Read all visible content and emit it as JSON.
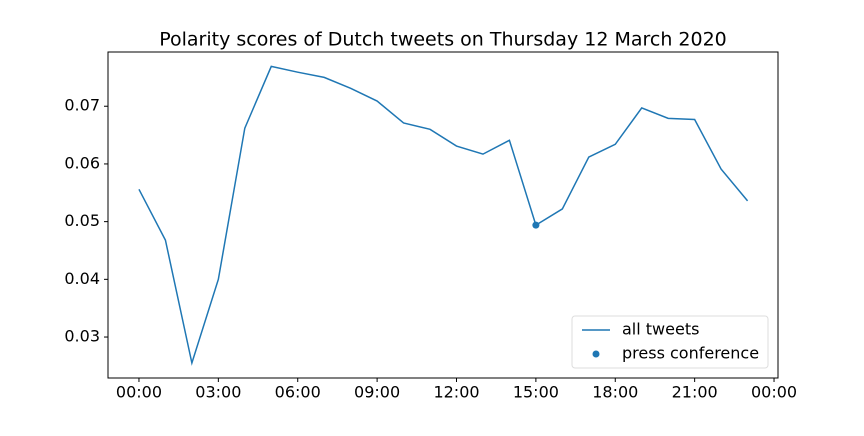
{
  "chart_data": {
    "type": "line",
    "title": "Polarity scores of Dutch tweets on Thursday 12 March 2020",
    "series": [
      {
        "name": "all tweets",
        "type": "line",
        "color": "#1f77b4",
        "x": [
          0,
          1,
          2,
          3,
          4,
          5,
          6,
          7,
          8,
          9,
          10,
          11,
          12,
          13,
          14,
          15,
          16,
          17,
          18,
          19,
          20,
          21,
          22,
          23
        ],
        "values": [
          0.0556,
          0.0468,
          0.0255,
          0.04,
          0.0662,
          0.0769,
          0.0759,
          0.075,
          0.0731,
          0.0709,
          0.0671,
          0.066,
          0.0631,
          0.0617,
          0.0641,
          0.0494,
          0.0522,
          0.0612,
          0.0634,
          0.0697,
          0.0679,
          0.0677,
          0.0591,
          0.0536
        ]
      },
      {
        "name": "press conference",
        "type": "scatter",
        "color": "#1f77b4",
        "x": [
          15
        ],
        "values": [
          0.0494
        ]
      }
    ],
    "xlim": [
      -1.17,
      24.15
    ],
    "xticks": [
      {
        "value": 0,
        "label": "00:00"
      },
      {
        "value": 3,
        "label": "03:00"
      },
      {
        "value": 6,
        "label": "06:00"
      },
      {
        "value": 9,
        "label": "09:00"
      },
      {
        "value": 12,
        "label": "12:00"
      },
      {
        "value": 15,
        "label": "15:00"
      },
      {
        "value": 18,
        "label": "18:00"
      },
      {
        "value": 21,
        "label": "21:00"
      },
      {
        "value": 24,
        "label": "00:00"
      }
    ],
    "ylim": [
      0.0229,
      0.0794
    ],
    "yticks": [
      0.03,
      0.04,
      0.05,
      0.06,
      0.07
    ],
    "grid": false,
    "legend": "lower right"
  }
}
